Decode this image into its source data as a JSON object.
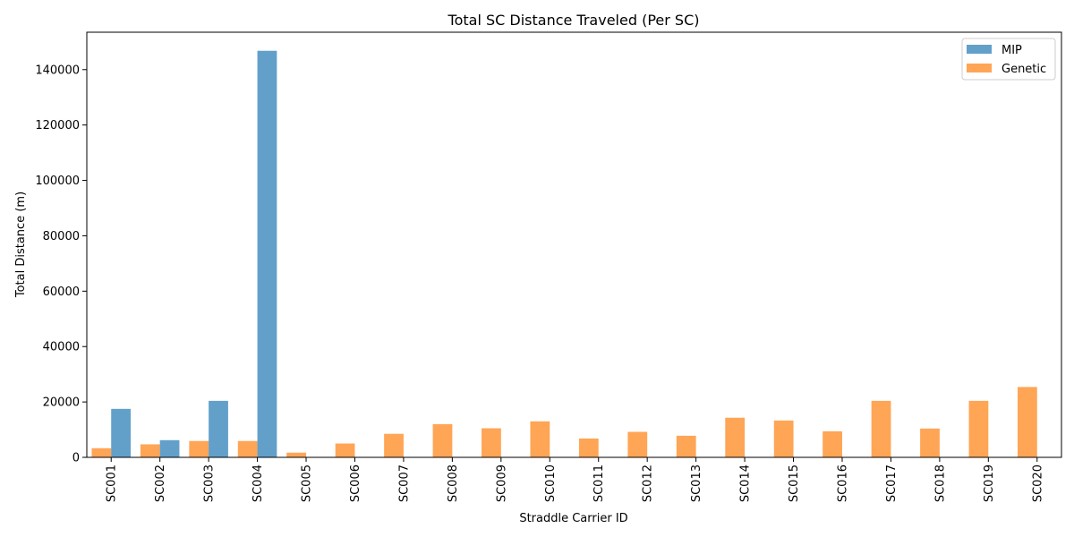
{
  "chart_data": {
    "type": "bar",
    "title": "Total SC Distance Traveled (Per SC)",
    "xlabel": "Straddle Carrier ID",
    "ylabel": "Total Distance (m)",
    "categories": [
      "SC001",
      "SC002",
      "SC003",
      "SC004",
      "SC005",
      "SC006",
      "SC007",
      "SC008",
      "SC009",
      "SC010",
      "SC011",
      "SC012",
      "SC013",
      "SC014",
      "SC015",
      "SC016",
      "SC017",
      "SC018",
      "SC019",
      "SC020"
    ],
    "series": [
      {
        "name": "MIP",
        "color": "#1f77b4",
        "values": [
          17500,
          6200,
          20400,
          146800,
          0,
          0,
          0,
          0,
          0,
          0,
          0,
          0,
          0,
          0,
          0,
          0,
          0,
          0,
          0,
          0
        ]
      },
      {
        "name": "Genetic",
        "color": "#ff7f0e",
        "values": [
          3300,
          4700,
          5900,
          5900,
          1700,
          5000,
          8500,
          12000,
          10500,
          13000,
          6800,
          9200,
          7800,
          14300,
          13300,
          9400,
          20400,
          10400,
          20400,
          25400
        ]
      }
    ],
    "ylim": [
      0,
      153500
    ],
    "yticks": [
      0,
      20000,
      40000,
      60000,
      80000,
      100000,
      120000,
      140000
    ],
    "legend_position": "top-right",
    "grid": false
  }
}
